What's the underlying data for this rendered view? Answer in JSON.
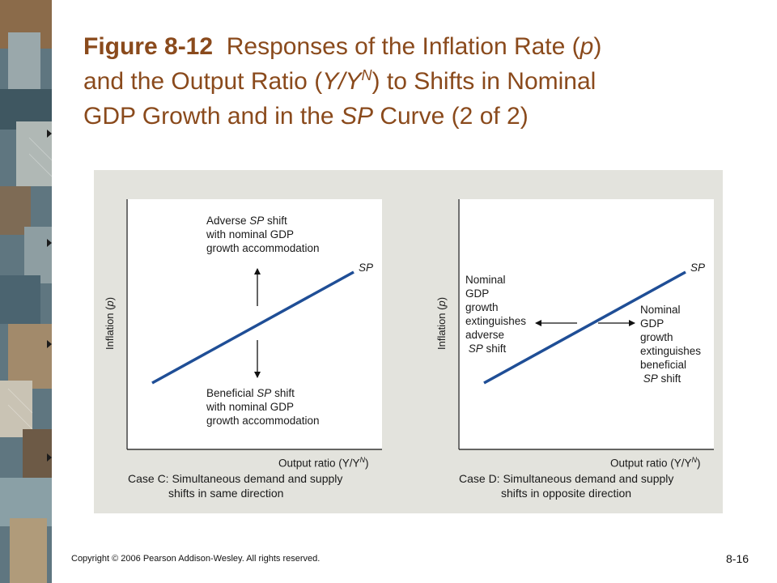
{
  "slide": {
    "title_bold": "Figure 8-12",
    "title_part1": "Responses of the Inflation Rate (",
    "title_p": "p",
    "title_part2": ")",
    "title_line2a": "and the Output Ratio (",
    "title_y": "Y/Y",
    "title_sup": "N",
    "title_line2b": ") to Shifts in Nominal",
    "title_line3a": "GDP Growth and in the ",
    "title_sp": "SP",
    "title_line3b": " Curve (2 of 2)",
    "copyright": "Copyright © 2006 Pearson Addison-Wesley. All rights reserved.",
    "page_number": "8-16"
  },
  "panel_c": {
    "y_axis_label": "Inflation (p)",
    "x_axis_label": "Output ratio (Y/Y",
    "x_axis_sup": "N",
    "x_axis_close": ")",
    "curve_label": "SP",
    "adverse_line1": "Adverse ",
    "adverse_sp": "SP",
    "adverse_line1b": " shift",
    "adverse_line2": "with nominal GDP",
    "adverse_line3": "growth accommodation",
    "beneficial_line1": "Beneficial ",
    "beneficial_sp": "SP",
    "beneficial_line1b": " shift",
    "beneficial_line2": "with nominal GDP",
    "beneficial_line3": "growth accommodation",
    "caption_line1": "Case C: Simultaneous demand and supply",
    "caption_line2": "shifts in same direction"
  },
  "panel_d": {
    "y_axis_label": "Inflation (p)",
    "x_axis_label": "Output ratio (Y/Y",
    "x_axis_sup": "N",
    "x_axis_close": ")",
    "curve_label": "SP",
    "left_lines": [
      "Nominal",
      "GDP",
      "growth",
      "extinguishes",
      "adverse"
    ],
    "left_sp": "SP",
    "left_last": " shift",
    "right_lines": [
      "Nominal",
      "GDP",
      "growth",
      "extinguishes",
      "beneficial"
    ],
    "right_sp": "SP",
    "right_last": " shift",
    "caption_line1": "Case D: Simultaneous demand and supply",
    "caption_line2": "shifts in opposite direction"
  },
  "colors": {
    "title": "#8a4a1c",
    "curve": "#1f4e96",
    "panel_bg": "#e3e3dd"
  }
}
